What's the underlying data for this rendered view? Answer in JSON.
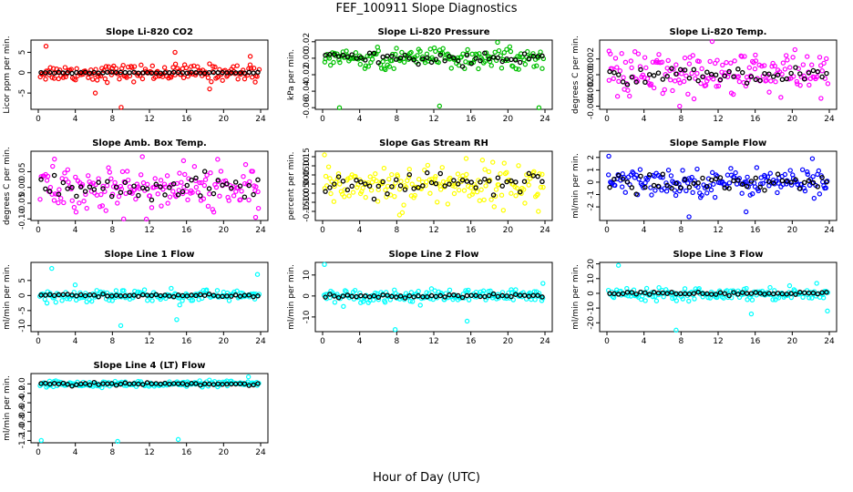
{
  "figure": {
    "title": "FEF_100911  Slope Diagnostics",
    "xlabel": "Hour of Day (UTC)"
  },
  "chart_data": [
    {
      "type": "scatter",
      "title": "Slope Li-820 CO2",
      "ylabel": "Licor ppm per min.",
      "xlim": [
        0,
        24
      ],
      "x_ticks": [
        0,
        4,
        8,
        12,
        16,
        20,
        24
      ],
      "ylim": [
        -9,
        8
      ],
      "y_ticks": [
        -5,
        0,
        5
      ],
      "y_tick_labels": [
        "-5",
        "0",
        "5"
      ],
      "series": [
        {
          "color": "#ff0000",
          "spread": 1.0,
          "outlier_values": [
            6.5,
            -5,
            -8.5,
            5,
            -4,
            4
          ]
        },
        {
          "color": "#000000",
          "spread": 0.1
        }
      ]
    },
    {
      "type": "scatter",
      "title": "Slope Li-820 Pressure",
      "ylabel": "kPa per min.",
      "xlim": [
        0,
        24
      ],
      "x_ticks": [
        0,
        4,
        8,
        12,
        16,
        20,
        24
      ],
      "ylim": [
        -0.062,
        0.022
      ],
      "y_ticks": [
        -0.06,
        -0.04,
        -0.02,
        0,
        0.02
      ],
      "y_tick_labels": [
        "-0.06",
        "-0.04",
        "-0.02",
        "0.00",
        "0.02"
      ],
      "series": [
        {
          "color": "#00c000",
          "spread": 0.006,
          "outlier_values": [
            -0.06,
            -0.058,
            -0.06
          ]
        },
        {
          "color": "#000000",
          "spread": 0.003
        }
      ]
    },
    {
      "type": "scatter",
      "title": "Slope Li-820 Temp.",
      "ylabel": "degrees C per min.",
      "xlim": [
        0,
        24
      ],
      "x_ticks": [
        0,
        4,
        8,
        12,
        16,
        20,
        24
      ],
      "ylim": [
        -0.0044,
        0.0044
      ],
      "y_ticks": [
        -0.004,
        -0.002,
        0,
        0.002
      ],
      "y_tick_labels": [
        "-0.004",
        "-0.002",
        "0.000",
        "0.002"
      ],
      "series": [
        {
          "color": "#ff00ff",
          "spread": 0.0015,
          "outlier_values": [
            0.003,
            -0.004,
            0.0025,
            -0.003
          ]
        },
        {
          "color": "#000000",
          "spread": 0.0005
        }
      ]
    },
    {
      "type": "scatter",
      "title": "Slope Amb. Box Temp.",
      "ylabel": "degrees C per min.",
      "xlim": [
        0,
        24
      ],
      "x_ticks": [
        0,
        4,
        8,
        12,
        16,
        20,
        24
      ],
      "ylim": [
        -0.105,
        0.115
      ],
      "y_ticks": [
        -0.1,
        -0.05,
        0,
        0.05
      ],
      "y_tick_labels": [
        "-0.10",
        "-0.05",
        "0.00",
        "0.05"
      ],
      "series": [
        {
          "color": "#ff00ff",
          "spread": 0.035,
          "outlier_values": [
            0.09,
            -0.1,
            0.085,
            -0.095
          ]
        },
        {
          "color": "#000000",
          "spread": 0.02
        }
      ]
    },
    {
      "type": "scatter",
      "title": "Slope Gas Stream RH",
      "ylabel": "percent per min.",
      "xlim": [
        0,
        24
      ],
      "x_ticks": [
        0,
        4,
        8,
        12,
        16,
        20,
        24
      ],
      "ylim": [
        -0.2,
        0.18
      ],
      "y_ticks": [
        -0.15,
        -0.1,
        -0.05,
        0,
        0.05,
        0.1,
        0.15
      ],
      "y_tick_labels": [
        "-0.15",
        "-0.10",
        "-0.05",
        "0.00",
        "0.05",
        "0.10",
        "0.15"
      ],
      "series": [
        {
          "color": "#ffff00",
          "spread": 0.055,
          "outlier_values": [
            0.16,
            -0.17,
            0.14,
            -0.15
          ]
        },
        {
          "color": "#000000",
          "spread": 0.03
        }
      ]
    },
    {
      "type": "scatter",
      "title": "Slope Sample Flow",
      "ylabel": "ml/min per min.",
      "xlim": [
        0,
        24
      ],
      "x_ticks": [
        0,
        4,
        8,
        12,
        16,
        20,
        24
      ],
      "ylim": [
        -3.1,
        2.5
      ],
      "y_ticks": [
        -2,
        -1,
        0,
        1,
        2
      ],
      "y_tick_labels": [
        "-2",
        "-1",
        "0",
        "1",
        "2"
      ],
      "series": [
        {
          "color": "#0000ff",
          "spread": 0.55,
          "outlier_values": [
            2.1,
            -2.8,
            -2.4,
            1.9
          ]
        },
        {
          "color": "#000000",
          "spread": 0.4
        }
      ]
    },
    {
      "type": "scatter",
      "title": "Slope Line 1 Flow",
      "ylabel": "ml/min per min.",
      "xlim": [
        0,
        24
      ],
      "x_ticks": [
        0,
        4,
        8,
        12,
        16,
        20,
        24
      ],
      "ylim": [
        -12,
        11
      ],
      "y_ticks": [
        -10,
        -5,
        0,
        5
      ],
      "y_tick_labels": [
        "-10",
        "-5",
        "0",
        "5"
      ],
      "series": [
        {
          "color": "#00ffff",
          "spread": 1.0,
          "outlier_values": [
            9,
            -10,
            -8,
            7
          ]
        },
        {
          "color": "#000000",
          "spread": 0.2
        }
      ]
    },
    {
      "type": "scatter",
      "title": "Slope Line 2 Flow",
      "ylabel": "ml/min per min.",
      "xlim": [
        0,
        24
      ],
      "x_ticks": [
        0,
        4,
        8,
        12,
        16,
        20,
        24
      ],
      "ylim": [
        -17,
        16
      ],
      "y_ticks": [
        -10,
        0,
        10
      ],
      "y_tick_labels": [
        "-10",
        "0",
        "10"
      ],
      "series": [
        {
          "color": "#00ffff",
          "spread": 1.5,
          "outlier_values": [
            15,
            -16,
            -12,
            6
          ]
        },
        {
          "color": "#000000",
          "spread": 0.4
        }
      ]
    },
    {
      "type": "scatter",
      "title": "Slope Line 3 Flow",
      "ylabel": "ml/min per min.",
      "xlim": [
        0,
        24
      ],
      "x_ticks": [
        0,
        4,
        8,
        12,
        16,
        20,
        24
      ],
      "ylim": [
        -26,
        21
      ],
      "y_ticks": [
        -20,
        -10,
        0,
        10,
        20
      ],
      "y_tick_labels": [
        "-20",
        "-10",
        "0",
        "10",
        "20"
      ],
      "series": [
        {
          "color": "#00ffff",
          "spread": 2.0,
          "outlier_values": [
            19,
            -25,
            -14,
            -12
          ]
        },
        {
          "color": "#000000",
          "spread": 0.5
        }
      ]
    },
    {
      "type": "scatter",
      "title": "Slope Line 4 (LT) Flow",
      "ylabel": "ml/min per min.",
      "xlim": [
        0,
        24
      ],
      "x_ticks": [
        0,
        4,
        8,
        12,
        16,
        20,
        24
      ],
      "ylim": [
        -1.25,
        0.22
      ],
      "y_ticks": [
        -1.2,
        -1.0,
        -0.8,
        -0.6,
        -0.4,
        -0.2,
        0.0
      ],
      "y_tick_labels": [
        "-1.2",
        "-1.0",
        "-0.8",
        "-0.6",
        "-0.4",
        "-0.2",
        "0.0"
      ],
      "series": [
        {
          "color": "#00ffff",
          "spread": 0.03,
          "outlier_values": [
            -1.2,
            -1.22,
            -1.18,
            0.15
          ]
        },
        {
          "color": "#000000",
          "spread": 0.015
        }
      ]
    }
  ]
}
